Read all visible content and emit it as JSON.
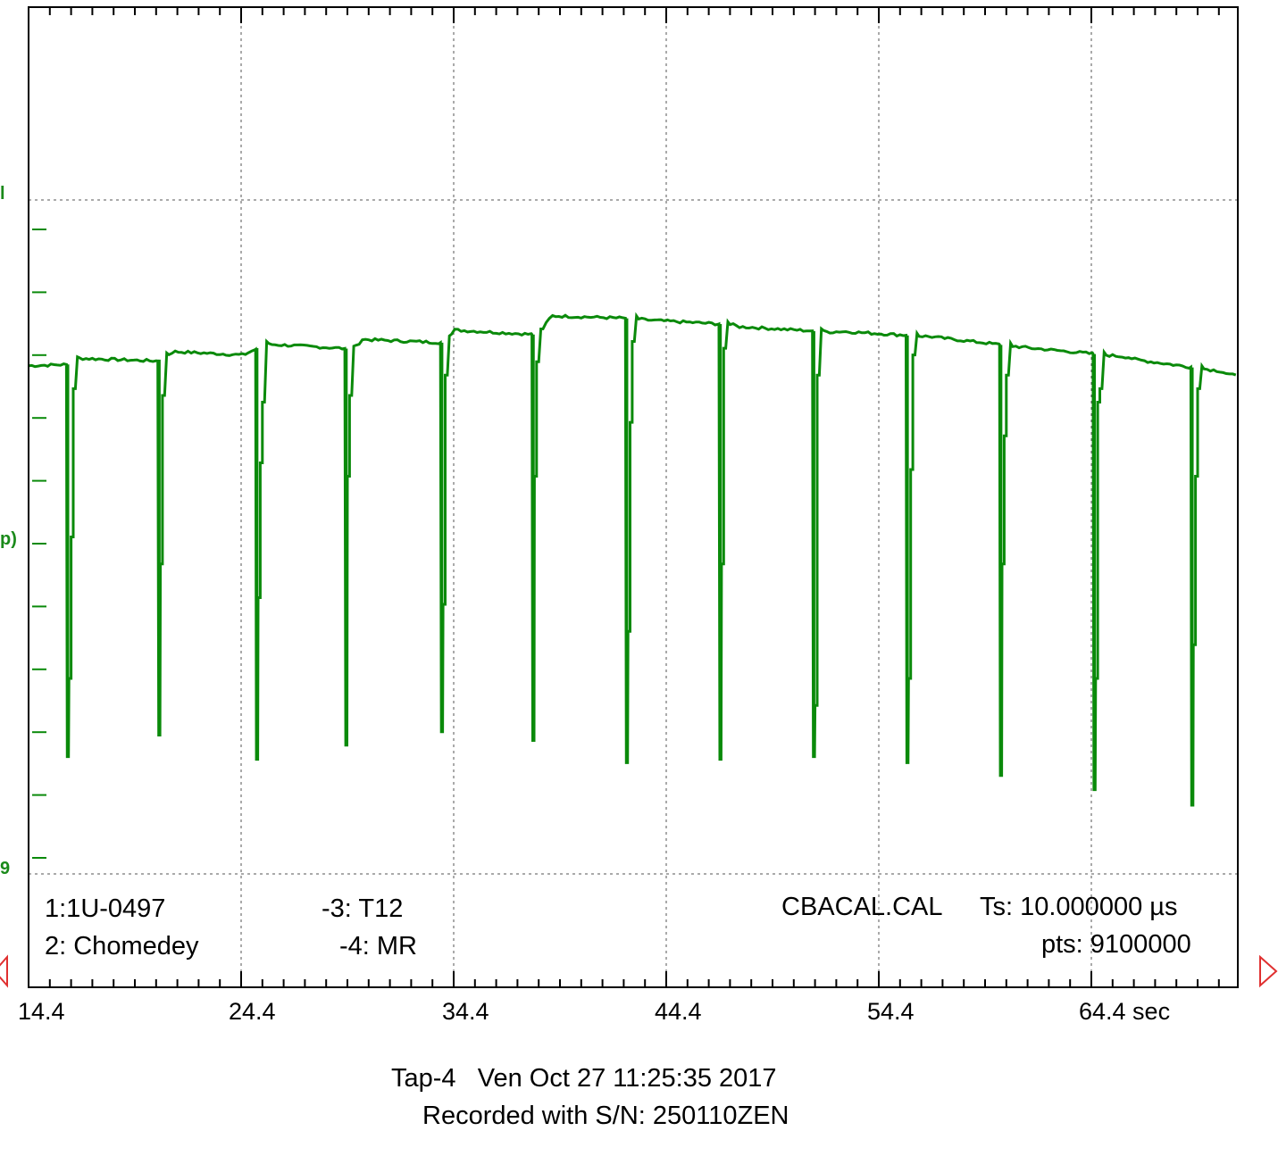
{
  "chart_data": {
    "type": "line",
    "title": "",
    "xlabel": "",
    "ylabel": "",
    "x_unit": "sec",
    "x_ticks": [
      "14.4",
      "24.4",
      "34.4",
      "44.4",
      "54.4",
      "64.4 sec"
    ],
    "xlim": [
      14.4,
      71.3
    ],
    "ylim": [
      0,
      1
    ],
    "grid": true,
    "series": [
      {
        "color": "#0a8a0a",
        "baseline": [
          [
            14.4,
            0.754
          ],
          [
            16.3,
            0.756
          ],
          [
            16.8,
            0.765
          ],
          [
            20.5,
            0.761
          ],
          [
            21.2,
            0.775
          ],
          [
            24.5,
            0.77
          ],
          [
            25.6,
            0.786
          ],
          [
            29.7,
            0.779
          ],
          [
            30.1,
            0.793
          ],
          [
            34.1,
            0.788
          ],
          [
            34.4,
            0.807
          ],
          [
            38.4,
            0.8
          ],
          [
            39.0,
            0.828
          ],
          [
            43.0,
            0.824
          ],
          [
            43.4,
            0.822
          ],
          [
            47.5,
            0.815
          ],
          [
            47.8,
            0.812
          ],
          [
            52.2,
            0.804
          ],
          [
            52.6,
            0.805
          ],
          [
            56.9,
            0.797
          ],
          [
            57.4,
            0.795
          ],
          [
            61.6,
            0.78
          ],
          [
            62.0,
            0.779
          ],
          [
            66.1,
            0.767
          ],
          [
            66.5,
            0.763
          ],
          [
            70.5,
            0.746
          ],
          [
            70.8,
            0.742
          ],
          [
            71.3,
            0.738
          ]
        ],
        "dips": [
          {
            "x": 16.3,
            "min": 0.174,
            "steps": [
              0.72,
              0.5,
              0.29
            ]
          },
          {
            "x": 20.6,
            "min": 0.206,
            "steps": [
              0.71,
              0.46
            ]
          },
          {
            "x": 25.2,
            "min": 0.17,
            "steps": [
              0.7,
              0.61,
              0.41
            ]
          },
          {
            "x": 29.4,
            "min": 0.191,
            "steps": [
              0.71,
              0.59
            ]
          },
          {
            "x": 33.9,
            "min": 0.211,
            "steps": [
              0.74,
              0.4
            ]
          },
          {
            "x": 38.2,
            "min": 0.198,
            "steps": [
              0.76,
              0.59
            ]
          },
          {
            "x": 42.6,
            "min": 0.165,
            "steps": [
              0.79,
              0.67,
              0.36
            ]
          },
          {
            "x": 47.0,
            "min": 0.17,
            "steps": [
              0.78,
              0.46
            ]
          },
          {
            "x": 51.4,
            "min": 0.174,
            "steps": [
              0.74,
              0.25
            ]
          },
          {
            "x": 55.8,
            "min": 0.165,
            "steps": [
              0.77,
              0.6,
              0.29
            ]
          },
          {
            "x": 60.2,
            "min": 0.146,
            "steps": [
              0.74,
              0.65,
              0.46
            ]
          },
          {
            "x": 64.6,
            "min": 0.125,
            "steps": [
              0.72,
              0.7,
              0.29
            ]
          },
          {
            "x": 69.2,
            "min": 0.102,
            "steps": [
              0.72,
              0.59,
              0.34
            ]
          }
        ]
      }
    ]
  },
  "channels": {
    "ch1": "1:1U-0497",
    "ch2": "2: Chomedey",
    "ch3": "-3: T12",
    "ch4": "-4: MR"
  },
  "info": {
    "cal": "CBACAL.CAL",
    "ts": "Ts: 10.000000 µs",
    "pts": "pts: 9100000"
  },
  "footer": {
    "line1": "Tap-4   Ven Oct 27 11:25:35 2017",
    "line2": "Recorded with S/N: 250110ZEN"
  },
  "left_edge_labels": {
    "top": "l",
    "mid": "p)",
    "bottom": "9"
  },
  "markers": {
    "left": "left-marker",
    "right": "right-marker",
    "color": "#e03030"
  }
}
